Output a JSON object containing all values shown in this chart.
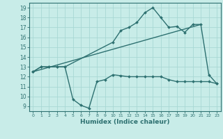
{
  "title": "",
  "xlabel": "Humidex (Indice chaleur)",
  "ylabel": "",
  "xlim": [
    -0.5,
    23.5
  ],
  "ylim": [
    8.5,
    19.5
  ],
  "yticks": [
    9,
    10,
    11,
    12,
    13,
    14,
    15,
    16,
    17,
    18,
    19
  ],
  "bg_color": "#c8ece8",
  "grid_color": "#a8d8d4",
  "line_color": "#2d7070",
  "line_width": 1.0,
  "marker_size": 2.0,
  "line1_x": [
    0,
    1,
    2,
    3,
    4,
    5,
    6,
    7,
    8,
    9,
    10,
    11,
    12,
    13,
    14,
    15,
    16,
    17,
    18,
    19,
    20,
    21,
    22,
    23
  ],
  "line1_y": [
    12.5,
    13.0,
    13.0,
    13.0,
    13.0,
    9.7,
    9.1,
    8.8,
    11.5,
    11.7,
    12.2,
    12.1,
    12.0,
    12.0,
    12.0,
    12.0,
    12.0,
    11.7,
    11.5,
    11.5,
    11.5,
    11.5,
    11.5,
    11.3
  ],
  "line2_x": [
    0,
    1,
    2,
    3,
    4,
    10,
    11,
    12,
    13,
    14,
    15,
    16,
    17,
    18,
    19,
    20,
    21,
    22,
    23
  ],
  "line2_y": [
    12.5,
    13.0,
    13.0,
    13.0,
    13.0,
    15.5,
    16.7,
    17.0,
    17.5,
    18.5,
    19.0,
    18.0,
    17.0,
    17.1,
    16.5,
    17.3,
    17.3,
    12.2,
    11.3
  ],
  "line3_x": [
    0,
    21
  ],
  "line3_y": [
    12.5,
    17.3
  ]
}
